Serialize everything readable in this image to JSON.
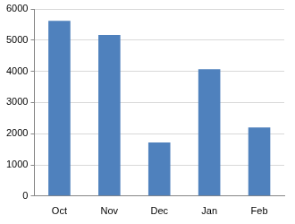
{
  "chart_data": {
    "type": "bar",
    "categories": [
      "Oct",
      "Nov",
      "Dec",
      "Jan",
      "Feb"
    ],
    "values": [
      5620,
      5170,
      1720,
      4070,
      2200
    ],
    "color": "#4f81bd",
    "ylim": [
      0,
      6000
    ],
    "yticks": [
      0,
      1000,
      2000,
      3000,
      4000,
      5000,
      6000
    ],
    "grid": true
  }
}
